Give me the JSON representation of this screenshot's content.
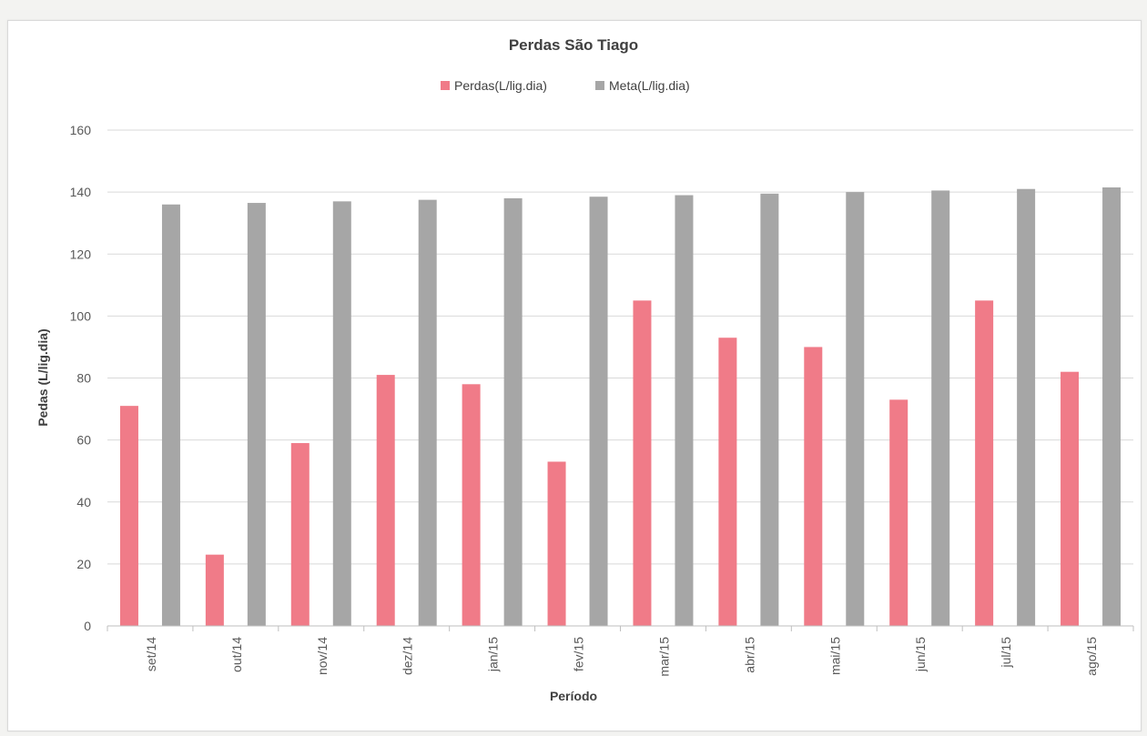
{
  "chart_data": {
    "type": "bar",
    "title": "Perdas São Tiago",
    "xlabel": "Período",
    "ylabel": "Pedas (L/lig.dia)",
    "ylim": [
      0,
      160
    ],
    "yticks": [
      "0",
      "20",
      "40",
      "60",
      "80",
      "100",
      "120",
      "140",
      "160"
    ],
    "grid": true,
    "legend_position": "top",
    "categories": [
      "set/14",
      "out/14",
      "nov/14",
      "dez/14",
      "jan/15",
      "fev/15",
      "mar/15",
      "abr/15",
      "mai/15",
      "jun/15",
      "jul/15",
      "ago/15"
    ],
    "series": [
      {
        "name": "Perdas(L/lig.dia)",
        "color": "#f07b88",
        "values": [
          71,
          23,
          59,
          81,
          78,
          53,
          105,
          93,
          90,
          73,
          105,
          82
        ]
      },
      {
        "name": "Meta(L/lig.dia)",
        "color": "#a6a6a6",
        "values": [
          136,
          136.5,
          137,
          137.5,
          138,
          138.5,
          139,
          139.5,
          140,
          140.5,
          141,
          141.5
        ]
      }
    ]
  }
}
